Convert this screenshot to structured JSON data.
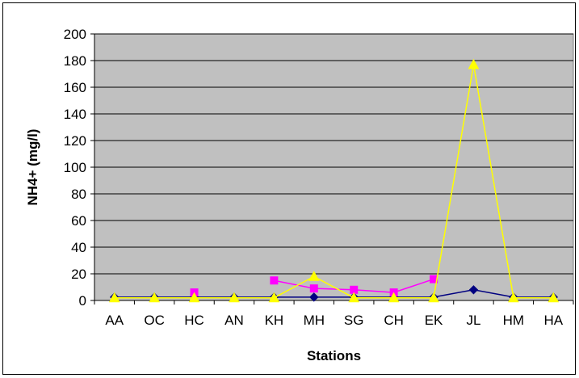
{
  "chart_data": {
    "type": "line",
    "title": "",
    "xlabel": "Stations",
    "ylabel": "NH4+ (mg/l)",
    "categories": [
      "AA",
      "OC",
      "HC",
      "AN",
      "KH",
      "MH",
      "SG",
      "CH",
      "EK",
      "JL",
      "HM",
      "HA"
    ],
    "ylim": [
      0,
      200
    ],
    "yticks": [
      0,
      20,
      40,
      60,
      80,
      100,
      120,
      140,
      160,
      180,
      200
    ],
    "grid": true,
    "legend": "none",
    "plot_background": "#c0c0c0",
    "series": [
      {
        "color": "#000080",
        "marker": "diamond",
        "values": [
          2.5,
          2.5,
          2.5,
          2.5,
          2.5,
          2.5,
          2.5,
          2.5,
          2.5,
          8,
          2.5,
          2.5
        ]
      },
      {
        "color": "#ff00ff",
        "marker": "square",
        "values": [
          null,
          null,
          6,
          null,
          15,
          9,
          8,
          6,
          16,
          null,
          null,
          null
        ]
      },
      {
        "color": "#ffff00",
        "marker": "triangle",
        "values": [
          2,
          2,
          2,
          2,
          2,
          18,
          2,
          2,
          2,
          177,
          2,
          2
        ]
      }
    ]
  }
}
